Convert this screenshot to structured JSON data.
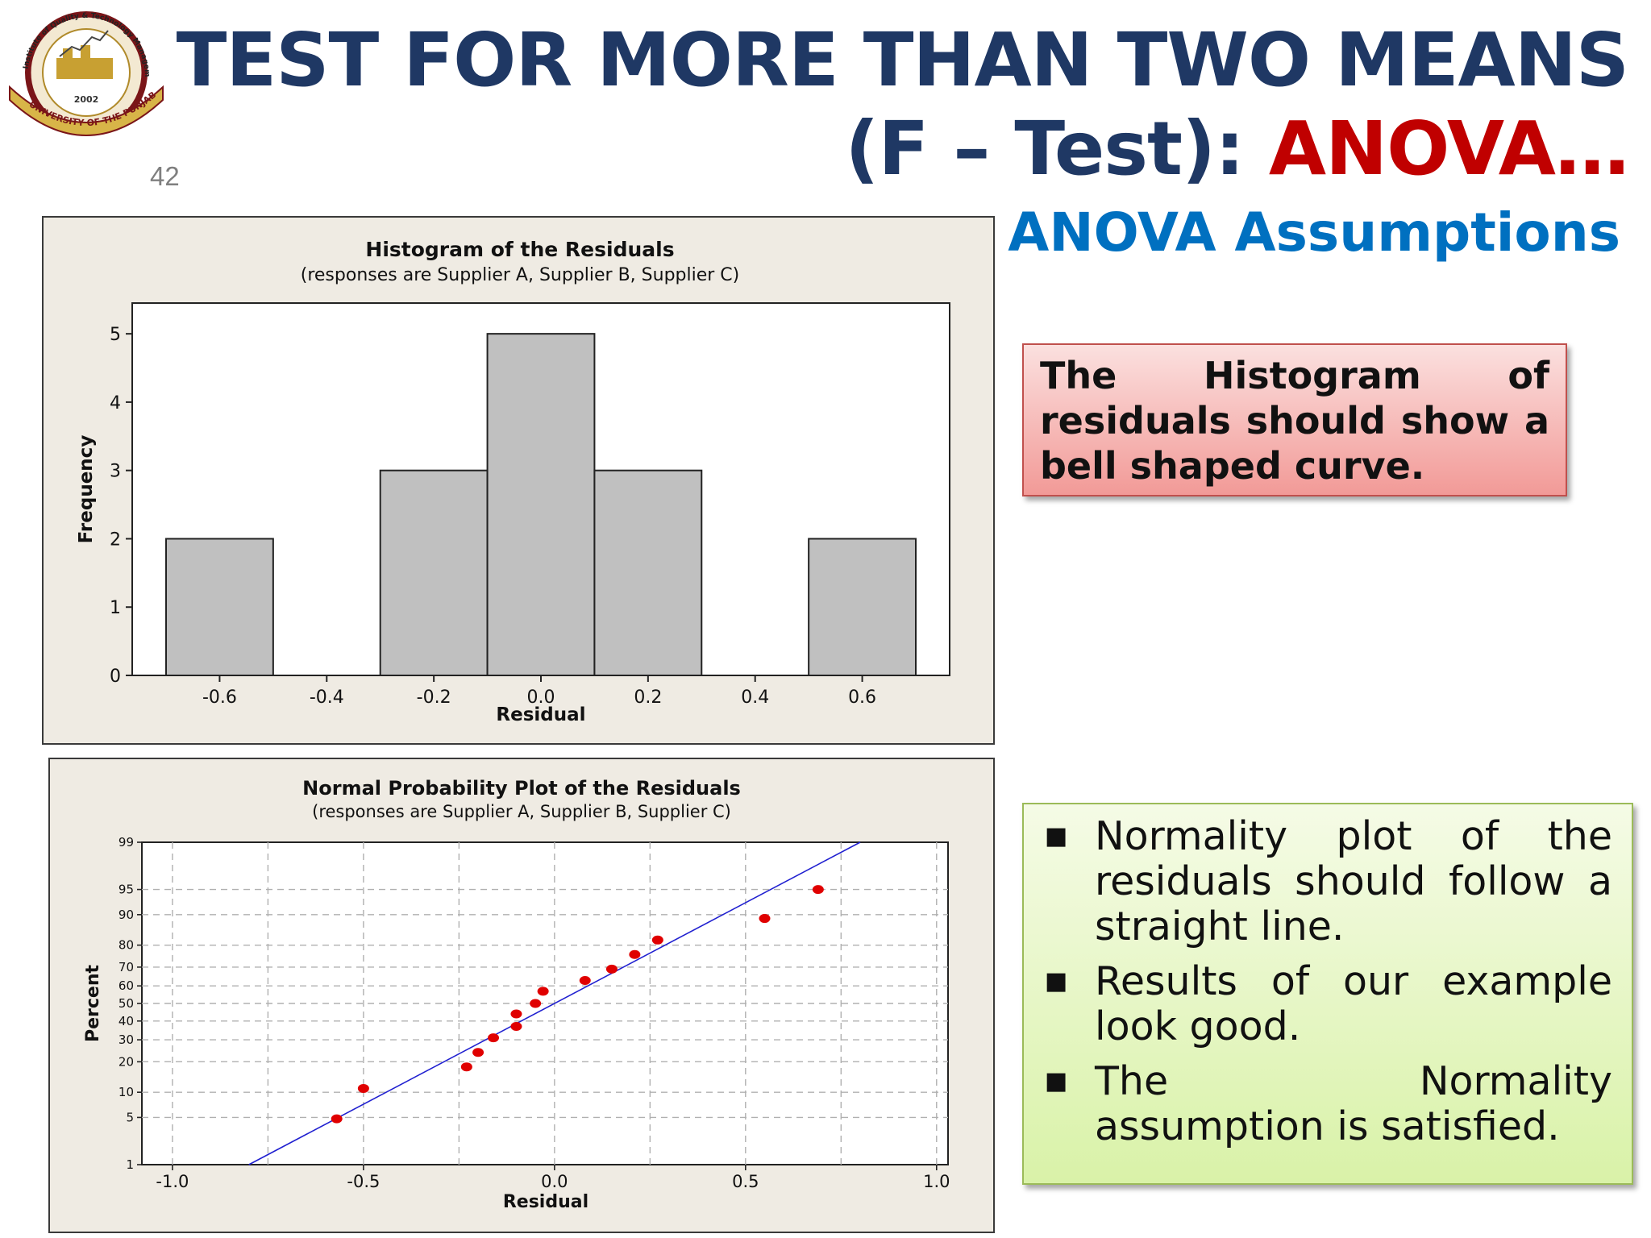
{
  "slide": {
    "number": "42",
    "title_line1": "TEST FOR MORE THAN TWO MEANS",
    "title_line2_prefix": "(F – Test): ",
    "title_line2_highlight": "ANOVA…",
    "subtitle": "ANOVA Assumptions",
    "logo": {
      "ring_top": "Institute of Quality & Technology Management",
      "year": "2002",
      "ring_bottom": "UNIVERSITY OF THE PUNJAB"
    },
    "callout_histogram": "The Histogram of residuals should show a bell shaped curve.",
    "bullets": [
      "Normality plot of the residuals should follow a straight line.",
      "Results of our example look good.",
      "The Normality assumption is satisfied."
    ],
    "colors": {
      "title": "#1f3864",
      "highlight": "#c00000",
      "subtitle": "#0070c0",
      "bar_fill": "#c0c0c0",
      "point": "#e00000",
      "fit_line": "#2020d0"
    }
  },
  "chart_data": [
    {
      "type": "bar",
      "title": "Histogram of the Residuals",
      "subtitle": "(responses are Supplier A, Supplier B, Supplier C)",
      "xlabel": "Residual",
      "ylabel": "Frequency",
      "categories": [
        "-0.6",
        "-0.4",
        "-0.2",
        "0.0",
        "0.2",
        "0.4",
        "0.6"
      ],
      "values": [
        2,
        0,
        3,
        5,
        3,
        0,
        2
      ],
      "x_ticks": [
        "-0.6",
        "-0.4",
        "-0.2",
        "0.0",
        "0.2",
        "0.4",
        "0.6"
      ],
      "y_ticks": [
        "0",
        "1",
        "2",
        "3",
        "4",
        "5"
      ],
      "ylim": [
        0,
        5.45
      ],
      "grid": false
    },
    {
      "type": "scatter",
      "title": "Normal Probability Plot of the Residuals",
      "subtitle": "(responses are Supplier A, Supplier B, Supplier C)",
      "xlabel": "Residual",
      "ylabel": "Percent",
      "y_scale": "normal-probability",
      "xlim": [
        -1.08,
        1.03
      ],
      "ylim": [
        1,
        99
      ],
      "x_ticks": [
        "-1.0",
        "-0.5",
        "0.0",
        "0.5",
        "1.0"
      ],
      "y_ticks": [
        "1",
        "5",
        "10",
        "20",
        "30",
        "40",
        "50",
        "60",
        "70",
        "80",
        "90",
        "95",
        "99"
      ],
      "grid": true,
      "points": [
        {
          "x": -0.57,
          "y": 4.8
        },
        {
          "x": -0.5,
          "y": 11
        },
        {
          "x": -0.23,
          "y": 18
        },
        {
          "x": -0.2,
          "y": 24
        },
        {
          "x": -0.16,
          "y": 31
        },
        {
          "x": -0.1,
          "y": 37
        },
        {
          "x": -0.1,
          "y": 44
        },
        {
          "x": -0.05,
          "y": 50
        },
        {
          "x": -0.03,
          "y": 57
        },
        {
          "x": 0.08,
          "y": 63
        },
        {
          "x": 0.15,
          "y": 69
        },
        {
          "x": 0.21,
          "y": 76
        },
        {
          "x": 0.27,
          "y": 82
        },
        {
          "x": 0.55,
          "y": 89
        },
        {
          "x": 0.69,
          "y": 95
        }
      ],
      "fit_line": {
        "x_at_p1": -0.8,
        "x_at_p99": 0.8
      }
    }
  ]
}
